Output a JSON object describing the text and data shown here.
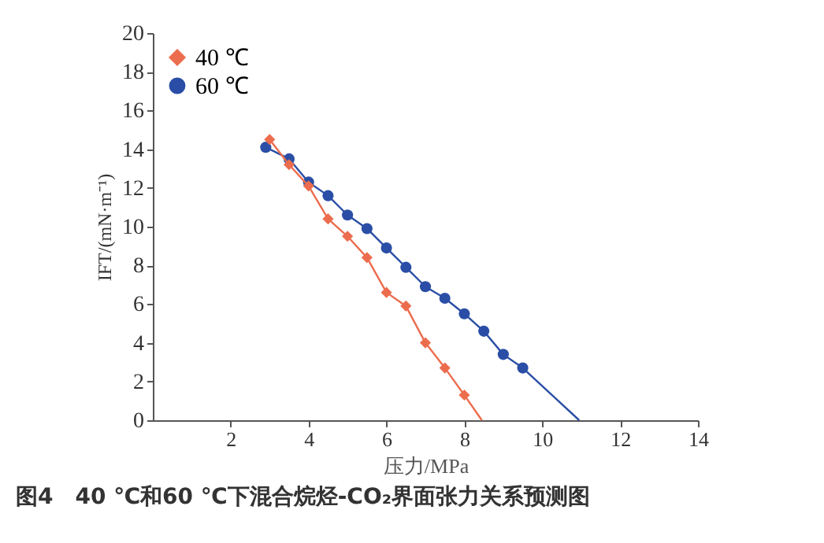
{
  "chart_data": {
    "type": "line",
    "xlabel": "压力/MPa",
    "ylabel": "IFT/(mN·m⁻¹)",
    "xlim": [
      0,
      14
    ],
    "xticks": [
      2,
      4,
      6,
      8,
      10,
      12,
      14
    ],
    "ylim": [
      0,
      20
    ],
    "yticks": [
      0,
      2,
      4,
      6,
      8,
      10,
      12,
      14,
      16,
      18,
      20
    ],
    "grid": false,
    "legend": "top left",
    "annotations": [
      "图4　40 ℃和60 ℃下混合烷烃-CO₂界面张力关系预测图"
    ],
    "series": [
      {
        "name": "40 ℃",
        "color": "#ec6d4e",
        "marker": "diamond",
        "x": [
          3.0,
          3.5,
          4.0,
          4.5,
          5.0,
          5.5,
          6.0,
          6.5,
          7.0,
          7.5,
          8.0
        ],
        "values": [
          14.5,
          13.2,
          12.1,
          10.4,
          9.5,
          8.4,
          6.6,
          5.9,
          4.0,
          2.7,
          1.3
        ]
      },
      {
        "name": "60 ℃",
        "color": "#2a4ea6",
        "marker": "circle",
        "x": [
          2.9,
          3.5,
          4.0,
          4.5,
          5.0,
          5.5,
          6.0,
          6.5,
          7.0,
          7.5,
          8.0,
          8.5,
          9.0,
          9.5
        ],
        "values": [
          14.1,
          13.5,
          12.3,
          11.6,
          10.6,
          9.9,
          8.9,
          7.9,
          6.9,
          6.3,
          5.5,
          4.6,
          3.4,
          2.7
        ]
      },
      {
        "type": "line",
        "color": "#ec6d4e",
        "marker": "none",
        "x": [
          8.0,
          8.45
        ],
        "values": [
          1.3,
          0
        ]
      },
      {
        "type": "line",
        "color": "#2a4ea6",
        "marker": "none",
        "x": [
          9.5,
          10.95
        ],
        "values": [
          2.7,
          0
        ]
      }
    ]
  }
}
